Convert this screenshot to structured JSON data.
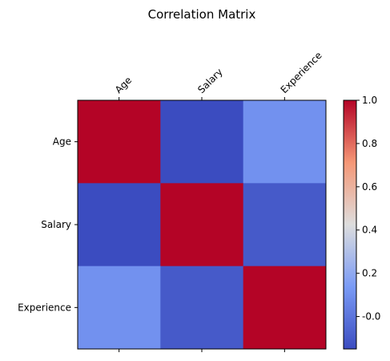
{
  "chart_data": {
    "type": "heatmap",
    "title": "Correlation Matrix",
    "categories": [
      "Age",
      "Salary",
      "Experience"
    ],
    "rows": [
      "Age",
      "Salary",
      "Experience"
    ],
    "values": [
      [
        1.0,
        -0.15,
        0.1
      ],
      [
        -0.15,
        1.0,
        -0.1
      ],
      [
        0.1,
        -0.1,
        1.0
      ]
    ],
    "colormap": "coolwarm",
    "colorbar": {
      "range": [
        -0.15,
        1.0
      ],
      "ticks": [
        "-0.0",
        "0.2",
        "0.4",
        "0.6",
        "0.8",
        "1.0"
      ],
      "tick_values": [
        0.0,
        0.2,
        0.4,
        0.6,
        0.8,
        1.0
      ]
    },
    "x_tick_position": "top",
    "grid": false
  }
}
